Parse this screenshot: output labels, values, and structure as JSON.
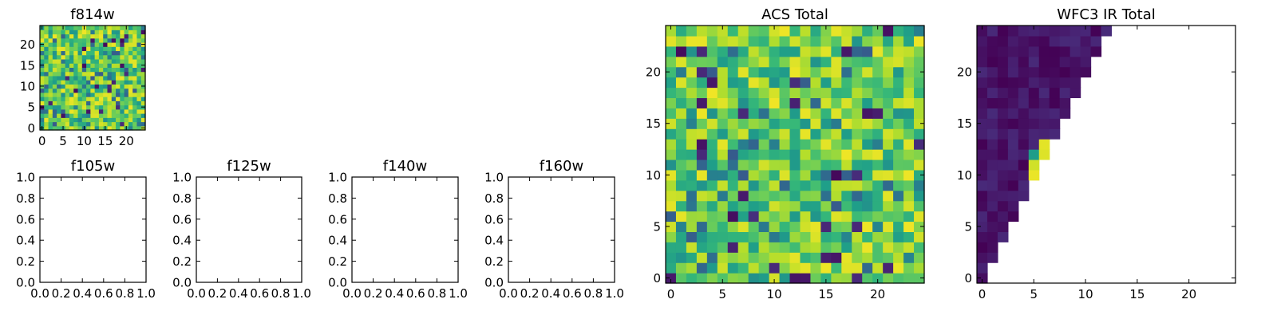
{
  "colors": {
    "colormap": "viridis",
    "axes_frame": "#000000",
    "background": "#ffffff"
  },
  "chart_data": [
    {
      "id": "f814w",
      "type": "heatmap",
      "title": "f814w",
      "grid_size": 25,
      "fill": "noise",
      "seed": 814,
      "xlim": [
        -0.5,
        24.5
      ],
      "ylim": [
        -0.5,
        24.5
      ],
      "xticks": [
        0,
        5,
        10,
        15,
        20
      ],
      "yticks": [
        0,
        5,
        10,
        15,
        20
      ],
      "xticklabels": [
        "0",
        "5",
        "10",
        "15",
        "20"
      ],
      "yticklabels": [
        "0",
        "5",
        "10",
        "15",
        "20"
      ]
    },
    {
      "id": "f105w",
      "type": "empty",
      "title": "f105w",
      "xlim": [
        0,
        1
      ],
      "ylim": [
        0,
        1
      ],
      "xticks": [
        0,
        0.2,
        0.4,
        0.6,
        0.8,
        1.0
      ],
      "yticks": [
        0,
        0.2,
        0.4,
        0.6,
        0.8,
        1.0
      ],
      "xticklabels": [
        "0.0",
        "0.2",
        "0.4",
        "0.6",
        "0.8",
        "1.0"
      ],
      "yticklabels": [
        "0.0",
        "0.2",
        "0.4",
        "0.6",
        "0.8",
        "1.0"
      ]
    },
    {
      "id": "f125w",
      "type": "empty",
      "title": "f125w",
      "xlim": [
        0,
        1
      ],
      "ylim": [
        0,
        1
      ],
      "xticks": [
        0,
        0.2,
        0.4,
        0.6,
        0.8,
        1.0
      ],
      "yticks": [
        0,
        0.2,
        0.4,
        0.6,
        0.8,
        1.0
      ],
      "xticklabels": [
        "0.0",
        "0.2",
        "0.4",
        "0.6",
        "0.8",
        "1.0"
      ],
      "yticklabels": [
        "0.0",
        "0.2",
        "0.4",
        "0.6",
        "0.8",
        "1.0"
      ]
    },
    {
      "id": "f140w",
      "type": "empty",
      "title": "f140w",
      "xlim": [
        0,
        1
      ],
      "ylim": [
        0,
        1
      ],
      "xticks": [
        0,
        0.2,
        0.4,
        0.6,
        0.8,
        1.0
      ],
      "yticks": [
        0,
        0.2,
        0.4,
        0.6,
        0.8,
        1.0
      ],
      "xticklabels": [
        "0.0",
        "0.2",
        "0.4",
        "0.6",
        "0.8",
        "1.0"
      ],
      "yticklabels": [
        "0.0",
        "0.2",
        "0.4",
        "0.6",
        "0.8",
        "1.0"
      ]
    },
    {
      "id": "f160w",
      "type": "empty",
      "title": "f160w",
      "xlim": [
        0,
        1
      ],
      "ylim": [
        0,
        1
      ],
      "xticks": [
        0,
        0.2,
        0.4,
        0.6,
        0.8,
        1.0
      ],
      "yticks": [
        0,
        0.2,
        0.4,
        0.6,
        0.8,
        1.0
      ],
      "xticklabels": [
        "0.0",
        "0.2",
        "0.4",
        "0.6",
        "0.8",
        "1.0"
      ],
      "yticklabels": [
        "0.0",
        "0.2",
        "0.4",
        "0.6",
        "0.8",
        "1.0"
      ]
    },
    {
      "id": "acs_total",
      "type": "heatmap",
      "title": "ACS Total",
      "grid_size": 25,
      "fill": "noise",
      "seed": 2019,
      "xlim": [
        -0.5,
        24.5
      ],
      "ylim": [
        -0.5,
        24.5
      ],
      "xticks": [
        0,
        5,
        10,
        15,
        20
      ],
      "yticks": [
        0,
        5,
        10,
        15,
        20
      ],
      "xticklabels": [
        "0",
        "5",
        "10",
        "15",
        "20"
      ],
      "yticklabels": [
        "0",
        "5",
        "10",
        "15",
        "20"
      ]
    },
    {
      "id": "wfc3_ir_total",
      "type": "heatmap",
      "title": "WFC3 IR Total",
      "grid_size": 25,
      "fill": "triangle",
      "triangle_rows": [
        {
          "y": 0,
          "xmax": 0
        },
        {
          "y": 1,
          "xmax": 0
        },
        {
          "y": 2,
          "xmax": 1
        },
        {
          "y": 3,
          "xmax": 1
        },
        {
          "y": 4,
          "xmax": 2
        },
        {
          "y": 5,
          "xmax": 2
        },
        {
          "y": 6,
          "xmax": 3
        },
        {
          "y": 7,
          "xmax": 3
        },
        {
          "y": 8,
          "xmax": 4
        },
        {
          "y": 9,
          "xmax": 4
        },
        {
          "y": 10,
          "xmax": 5
        },
        {
          "y": 11,
          "xmax": 5
        },
        {
          "y": 12,
          "xmax": 6
        },
        {
          "y": 13,
          "xmax": 6
        },
        {
          "y": 14,
          "xmax": 7
        },
        {
          "y": 15,
          "xmax": 7
        },
        {
          "y": 16,
          "xmax": 8
        },
        {
          "y": 17,
          "xmax": 8
        },
        {
          "y": 18,
          "xmax": 9
        },
        {
          "y": 19,
          "xmax": 9
        },
        {
          "y": 20,
          "xmax": 10
        },
        {
          "y": 21,
          "xmax": 10
        },
        {
          "y": 22,
          "xmax": 11
        },
        {
          "y": 23,
          "xmax": 11
        },
        {
          "y": 24,
          "xmax": 12
        }
      ],
      "bright_cells": [
        {
          "x": 5,
          "y": 10,
          "v": 0.97
        },
        {
          "x": 5,
          "y": 11,
          "v": 0.93
        },
        {
          "x": 5,
          "y": 12,
          "v": 0.55
        },
        {
          "x": 6,
          "y": 11,
          "v": 0.98
        },
        {
          "x": 6,
          "y": 12,
          "v": 0.95
        },
        {
          "x": 6,
          "y": 13,
          "v": 0.96
        }
      ],
      "base_range": [
        0.0,
        0.12
      ],
      "seed": 160,
      "xlim": [
        -0.5,
        24.5
      ],
      "ylim": [
        -0.5,
        24.5
      ],
      "xticks": [
        0,
        5,
        10,
        15,
        20
      ],
      "yticks": [
        0,
        5,
        10,
        15,
        20
      ],
      "xticklabels": [
        "0",
        "5",
        "10",
        "15",
        "20"
      ],
      "yticklabels": [
        "0",
        "5",
        "10",
        "15",
        "20"
      ]
    }
  ]
}
